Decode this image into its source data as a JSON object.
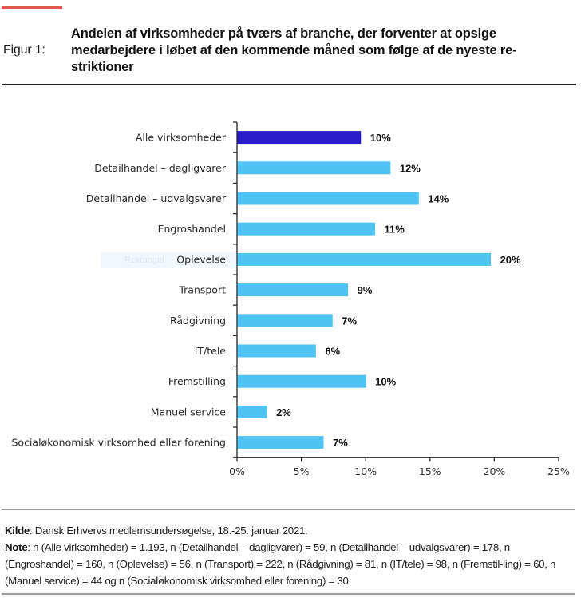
{
  "figure": {
    "label": "Figur 1:",
    "title": "Andelen af virksomheder på tværs af branche, der forventer at opsige medarbejdere i løbet af den kommende måned som følge af de nyeste re-striktioner",
    "title_lines": [
      "Andelen af virksomheder på tværs af branche, der forventer at opsige",
      "medarbejdere i løbet af den kommende måned som følge af de nyeste re-",
      "striktioner"
    ],
    "ghost_overlay_text": "Rektangel"
  },
  "chart_data": {
    "type": "bar",
    "orientation": "horizontal",
    "title": "Andelen af virksomheder på tværs af branche, der forventer at opsige medarbejdere i løbet af den kommende måned som følge af de nyeste restriktioner",
    "xlabel": "",
    "ylabel": "",
    "categories": [
      "Alle virksomheder",
      "Detailhandel – dagligvarer",
      "Detailhandel – udvalgsvarer",
      "Engroshandel",
      "Oplevelse",
      "Transport",
      "Rådgivning",
      "IT/tele",
      "Fremstilling",
      "Manuel service",
      "Socialøkonomisk virksomhed eller forening"
    ],
    "values": [
      9.6,
      11.9,
      14.1,
      10.7,
      19.7,
      8.6,
      7.4,
      6.1,
      10.0,
      2.3,
      6.7
    ],
    "data_labels": [
      "10%",
      "12%",
      "14%",
      "11%",
      "20%",
      "9%",
      "7%",
      "6%",
      "10%",
      "2%",
      "7%"
    ],
    "highlight_index": 0,
    "colors": {
      "highlight": "#2a1bc9",
      "default": "#4fc3f2"
    },
    "xlim": [
      0,
      25
    ],
    "xticks": [
      0,
      5,
      10,
      15,
      20,
      25
    ],
    "xtick_labels": [
      "0%",
      "5%",
      "10%",
      "15%",
      "20%",
      "25%"
    ],
    "grid": false,
    "legend": "none"
  },
  "footer": {
    "source_label": "Kilde",
    "source_text": ": Dansk Erhvervs medlemsundersøgelse, 18.-25. januar 2021.",
    "note_label": "Note",
    "note_text": ": n (Alle virksomheder) = 1.193, n (Detailhandel – dagligvarer) = 59, n (Detailhandel – udvalgsvarer) = 178, n (Engroshandel) = 160, n (Oplevelse) = 56, n (Transport) = 222, n (Rådgivning) = 81, n (IT/tele) = 98, n (Fremstil-ling) = 60, n (Manuel service) = 44 og n (Socialøkonomisk virksomhed eller forening) = 30."
  },
  "colors": {
    "accent_line": "#e2574c"
  }
}
